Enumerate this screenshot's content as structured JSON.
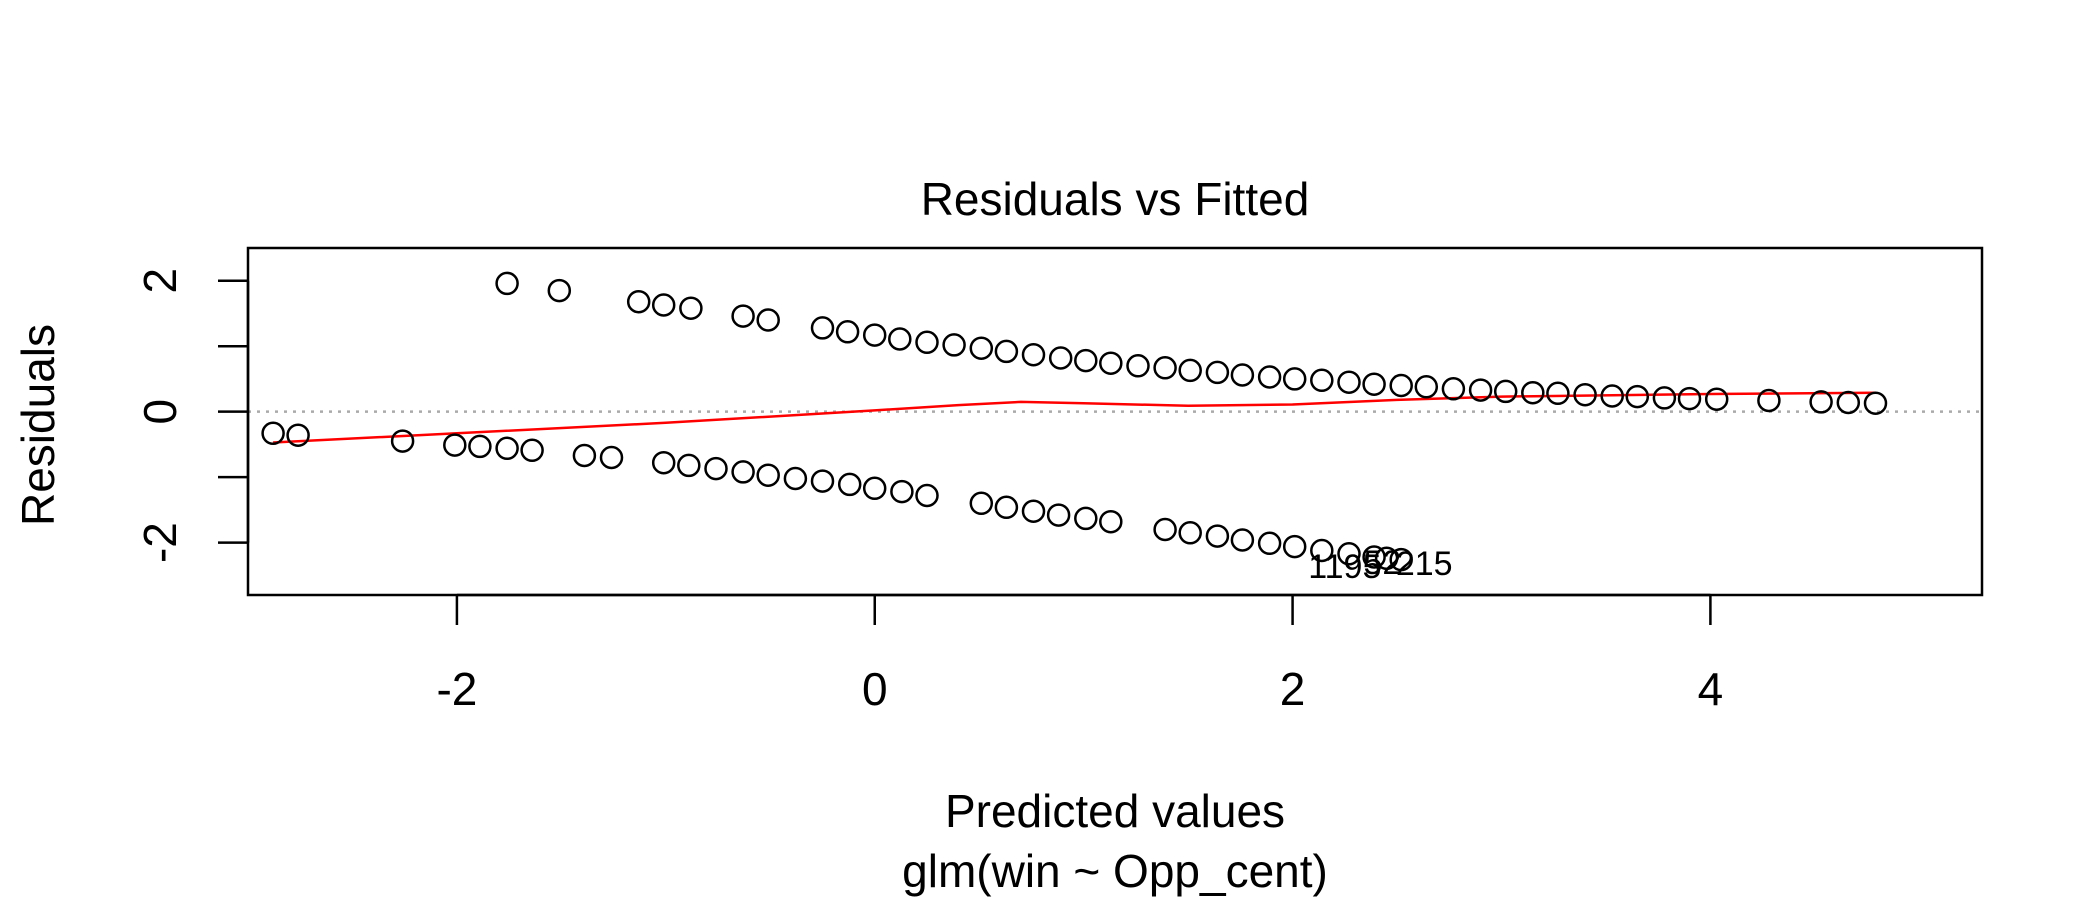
{
  "chart_data": {
    "type": "scatter",
    "title": "Residuals vs Fitted",
    "xlabel": "Predicted values",
    "subtitle": "glm(win ~ Opp_cent)",
    "ylabel": "Residuals",
    "xlim": [
      -3.0,
      5.3
    ],
    "ylim": [
      -2.8,
      2.5
    ],
    "x_ticks": [
      -2,
      0,
      2,
      4
    ],
    "y_ticks": [
      -2,
      -1,
      0,
      1,
      2
    ],
    "y_tick_labels": [
      "-2",
      "0",
      "2"
    ],
    "grid": false,
    "reference_line": {
      "y": 0,
      "style": "dotted",
      "color": "#aaaaaa"
    },
    "series": [
      {
        "color": "#000000",
        "marker": "open-circle",
        "points": [
          {
            "x": -2.88,
            "y": -0.33
          },
          {
            "x": -2.76,
            "y": -0.36
          },
          {
            "x": -2.26,
            "y": -0.45
          },
          {
            "x": -2.01,
            "y": -0.51
          },
          {
            "x": -1.89,
            "y": -0.53
          },
          {
            "x": -1.76,
            "y": -0.56
          },
          {
            "x": -1.64,
            "y": -0.59
          },
          {
            "x": -1.39,
            "y": -0.67
          },
          {
            "x": -1.26,
            "y": -0.7
          },
          {
            "x": -1.01,
            "y": -0.78
          },
          {
            "x": -0.89,
            "y": -0.82
          },
          {
            "x": -0.76,
            "y": -0.87
          },
          {
            "x": -0.63,
            "y": -0.92
          },
          {
            "x": -0.51,
            "y": -0.97
          },
          {
            "x": -0.38,
            "y": -1.02
          },
          {
            "x": -0.25,
            "y": -1.06
          },
          {
            "x": -0.12,
            "y": -1.11
          },
          {
            "x": 0.0,
            "y": -1.17
          },
          {
            "x": 0.13,
            "y": -1.22
          },
          {
            "x": 0.25,
            "y": -1.28
          },
          {
            "x": 0.51,
            "y": -1.4
          },
          {
            "x": 0.63,
            "y": -1.46
          },
          {
            "x": 0.76,
            "y": -1.52
          },
          {
            "x": 0.88,
            "y": -1.58
          },
          {
            "x": 1.01,
            "y": -1.63
          },
          {
            "x": 1.13,
            "y": -1.68
          },
          {
            "x": 1.39,
            "y": -1.8
          },
          {
            "x": 1.51,
            "y": -1.85
          },
          {
            "x": 1.64,
            "y": -1.9
          },
          {
            "x": 1.76,
            "y": -1.96
          },
          {
            "x": 1.89,
            "y": -2.01
          },
          {
            "x": 2.01,
            "y": -2.06
          },
          {
            "x": 2.14,
            "y": -2.12
          },
          {
            "x": 2.27,
            "y": -2.17
          },
          {
            "x": 2.39,
            "y": -2.22
          },
          {
            "x": 2.45,
            "y": -2.24
          },
          {
            "x": 2.52,
            "y": -2.26
          },
          {
            "x": -1.76,
            "y": 1.96
          },
          {
            "x": -1.51,
            "y": 1.85
          },
          {
            "x": -1.13,
            "y": 1.68
          },
          {
            "x": -1.01,
            "y": 1.63
          },
          {
            "x": -0.88,
            "y": 1.58
          },
          {
            "x": -0.63,
            "y": 1.46
          },
          {
            "x": -0.51,
            "y": 1.4
          },
          {
            "x": -0.25,
            "y": 1.28
          },
          {
            "x": -0.13,
            "y": 1.22
          },
          {
            "x": 0.0,
            "y": 1.17
          },
          {
            "x": 0.12,
            "y": 1.11
          },
          {
            "x": 0.25,
            "y": 1.06
          },
          {
            "x": 0.38,
            "y": 1.02
          },
          {
            "x": 0.51,
            "y": 0.97
          },
          {
            "x": 0.63,
            "y": 0.92
          },
          {
            "x": 0.76,
            "y": 0.87
          },
          {
            "x": 0.89,
            "y": 0.82
          },
          {
            "x": 1.01,
            "y": 0.78
          },
          {
            "x": 1.13,
            "y": 0.74
          },
          {
            "x": 1.26,
            "y": 0.7
          },
          {
            "x": 1.39,
            "y": 0.67
          },
          {
            "x": 1.51,
            "y": 0.63
          },
          {
            "x": 1.64,
            "y": 0.6
          },
          {
            "x": 1.76,
            "y": 0.56
          },
          {
            "x": 1.89,
            "y": 0.53
          },
          {
            "x": 2.01,
            "y": 0.5
          },
          {
            "x": 2.14,
            "y": 0.48
          },
          {
            "x": 2.27,
            "y": 0.45
          },
          {
            "x": 2.39,
            "y": 0.42
          },
          {
            "x": 2.52,
            "y": 0.4
          },
          {
            "x": 2.64,
            "y": 0.38
          },
          {
            "x": 2.77,
            "y": 0.35
          },
          {
            "x": 2.9,
            "y": 0.33
          },
          {
            "x": 3.02,
            "y": 0.31
          },
          {
            "x": 3.15,
            "y": 0.29
          },
          {
            "x": 3.27,
            "y": 0.28
          },
          {
            "x": 3.4,
            "y": 0.26
          },
          {
            "x": 3.53,
            "y": 0.24
          },
          {
            "x": 3.65,
            "y": 0.23
          },
          {
            "x": 3.78,
            "y": 0.21
          },
          {
            "x": 3.9,
            "y": 0.2
          },
          {
            "x": 4.03,
            "y": 0.19
          },
          {
            "x": 4.28,
            "y": 0.17
          },
          {
            "x": 4.53,
            "y": 0.15
          },
          {
            "x": 4.66,
            "y": 0.14
          },
          {
            "x": 4.79,
            "y": 0.13
          }
        ]
      }
    ],
    "smooth_line": {
      "color": "#ff0000",
      "points": [
        {
          "x": -2.88,
          "y": -0.47
        },
        {
          "x": -2.0,
          "y": -0.33
        },
        {
          "x": -1.0,
          "y": -0.17
        },
        {
          "x": 0.0,
          "y": 0.02
        },
        {
          "x": 0.4,
          "y": 0.1
        },
        {
          "x": 0.7,
          "y": 0.15
        },
        {
          "x": 1.0,
          "y": 0.13
        },
        {
          "x": 1.5,
          "y": 0.09
        },
        {
          "x": 2.0,
          "y": 0.11
        },
        {
          "x": 2.5,
          "y": 0.18
        },
        {
          "x": 3.0,
          "y": 0.23
        },
        {
          "x": 4.0,
          "y": 0.27
        },
        {
          "x": 4.79,
          "y": 0.29
        }
      ]
    },
    "annotations": [
      {
        "text": "1195",
        "x": 2.25,
        "y": -2.4
      },
      {
        "text": "52",
        "x": 2.43,
        "y": -2.34
      },
      {
        "text": "215",
        "x": 2.63,
        "y": -2.36
      }
    ]
  }
}
